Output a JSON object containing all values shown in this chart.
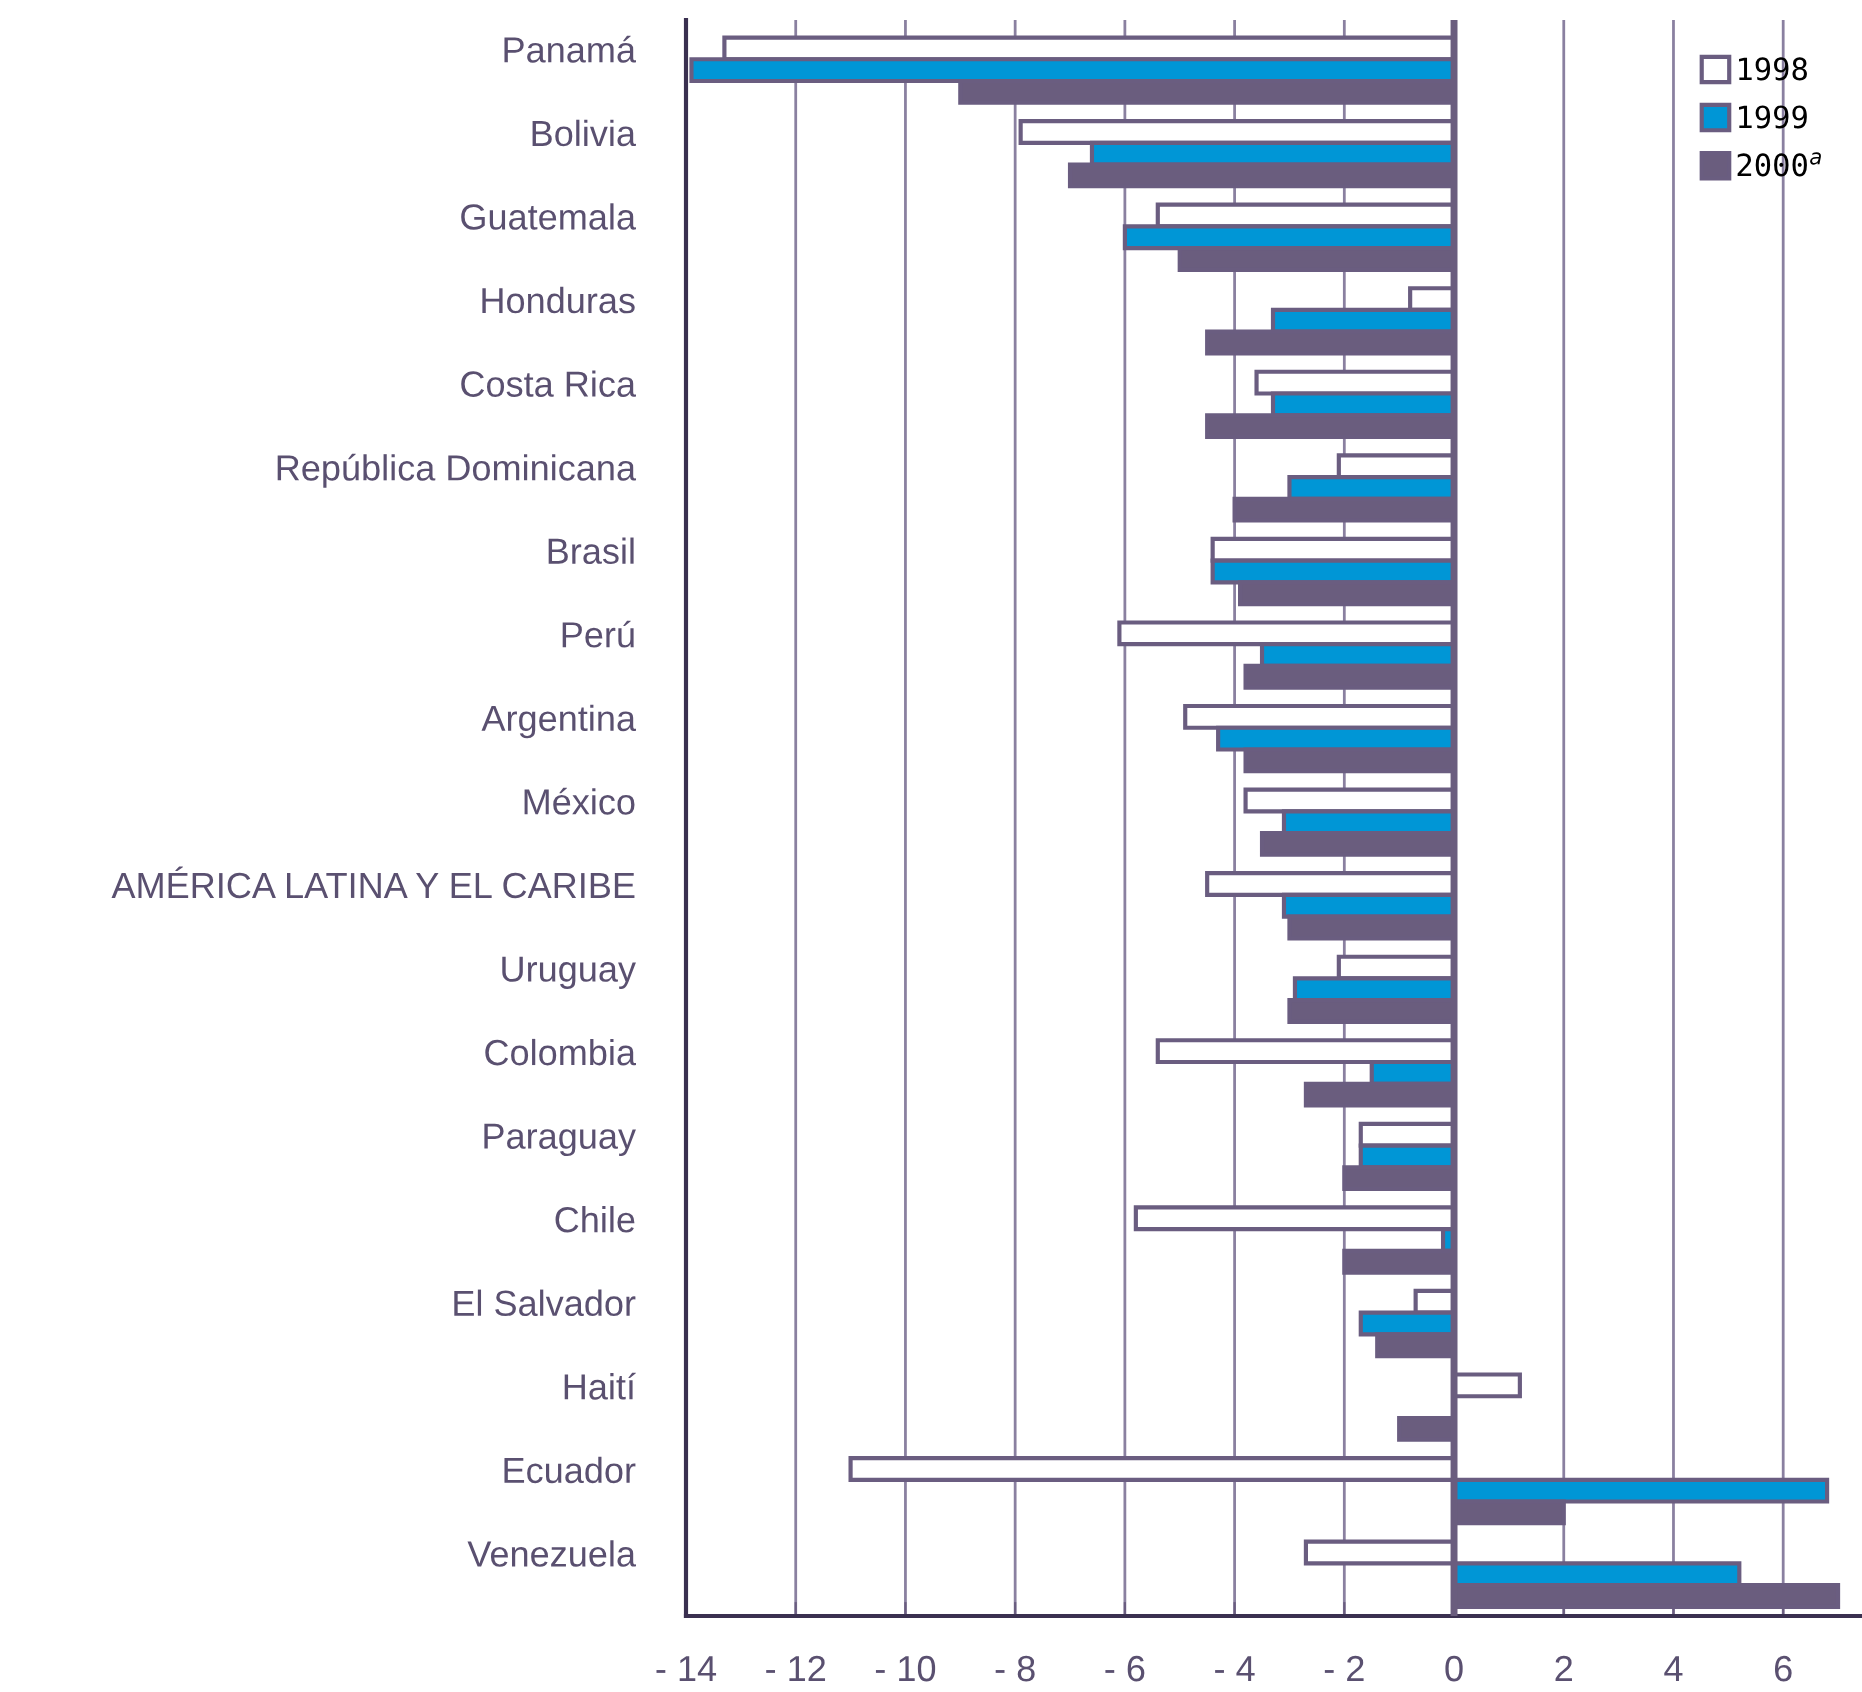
{
  "chart_data": {
    "type": "bar",
    "orientation": "horizontal",
    "categories": [
      "Panamá",
      "Bolivia",
      "Guatemala",
      "Honduras",
      "Costa Rica",
      "República Dominicana",
      "Brasil",
      "Perú",
      "Argentina",
      "México",
      "AMÉRICA LATINA Y EL CARIBE",
      "Uruguay",
      "Colombia",
      "Paraguay",
      "Chile",
      "El Salvador",
      "Haití",
      "Ecuador",
      "Venezuela"
    ],
    "series": [
      {
        "name": "1998",
        "color": "#ffffff",
        "values": [
          -13.3,
          -7.9,
          -5.4,
          -0.8,
          -3.6,
          -2.1,
          -4.4,
          -6.1,
          -4.9,
          -3.8,
          -4.5,
          -2.1,
          -5.4,
          -1.7,
          -5.8,
          -0.7,
          1.2,
          -11.0,
          -2.7
        ]
      },
      {
        "name": "1999",
        "color": "#0096d6",
        "values": [
          -13.9,
          -6.6,
          -6.0,
          -3.3,
          -3.3,
          -3.0,
          -4.4,
          -3.5,
          -4.3,
          -3.1,
          -3.1,
          -2.9,
          -1.5,
          -1.7,
          -0.2,
          -1.7,
          null,
          6.8,
          5.2
        ]
      },
      {
        "name": "2000$^{a}$",
        "color": "#6a5d7e",
        "values": [
          -9.0,
          -7.0,
          -5.0,
          -4.5,
          -4.5,
          -4.0,
          -3.9,
          -3.8,
          -3.8,
          -3.5,
          -3.0,
          -3.0,
          -2.7,
          -2.0,
          -2.0,
          -1.4,
          -1.0,
          2.0,
          7.0
        ]
      }
    ],
    "xlim": [
      -14,
      7.4
    ],
    "xticks": [
      {
        "value": -14,
        "label": "- 14"
      },
      {
        "value": -12,
        "label": "- 12"
      },
      {
        "value": -10,
        "label": "- 10"
      },
      {
        "value": -8,
        "label": "- 8"
      },
      {
        "value": -6,
        "label": "- 6"
      },
      {
        "value": -4,
        "label": "- 4"
      },
      {
        "value": -2,
        "label": "- 2"
      },
      0,
      2,
      4,
      6
    ],
    "ref_lines": [
      {
        "axis": "x",
        "value": 0,
        "color": "#6a5d7e"
      }
    ],
    "grid": "x",
    "legend": "top right"
  }
}
